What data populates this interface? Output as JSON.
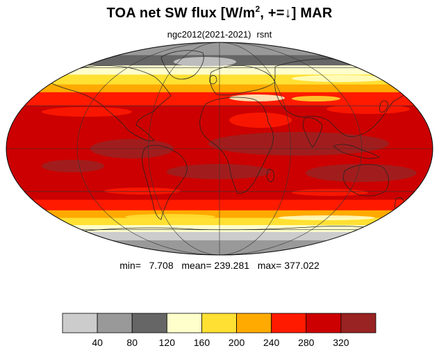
{
  "title": {
    "prefix": "TOA net SW flux [W/m",
    "superscript": "2",
    "suffix": ", +=↓]  MAR"
  },
  "subtitle": {
    "case": "ngc2012(2021-2021)",
    "variable": "rsnt"
  },
  "stats": {
    "min_label": "min=",
    "min": "7.708",
    "mean_label": "mean=",
    "mean": "239.281",
    "max_label": "max=",
    "max": "377.022"
  },
  "colorbar": {
    "colors": [
      "#cccccc",
      "#999999",
      "#666666",
      "#ffffcc",
      "#ffe033",
      "#ffaa00",
      "#ff1a00",
      "#cc0000",
      "#992222"
    ],
    "tick_labels": [
      "40",
      "80",
      "120",
      "160",
      "200",
      "240",
      "280",
      "320"
    ]
  },
  "map": {
    "projection": "mollweide",
    "grid": true,
    "bands": [
      {
        "lat_from": 90,
        "lat_to": 72,
        "color": "#999999"
      },
      {
        "lat_from": 72,
        "lat_to": 62,
        "color": "#666666"
      },
      {
        "lat_from": 62,
        "lat_to": 54,
        "color": "#ffffcc"
      },
      {
        "lat_from": 54,
        "lat_to": 46,
        "color": "#ffe033"
      },
      {
        "lat_from": 46,
        "lat_to": 40,
        "color": "#ffaa00"
      },
      {
        "lat_from": 40,
        "lat_to": 30,
        "color": "#ff1a00"
      },
      {
        "lat_from": 30,
        "lat_to": -20,
        "color": "#cc0000"
      },
      {
        "lat_from": -20,
        "lat_to": -36,
        "color": "#cc0000"
      },
      {
        "lat_from": -36,
        "lat_to": -44,
        "color": "#ff1a00"
      },
      {
        "lat_from": -44,
        "lat_to": -50,
        "color": "#ffaa00"
      },
      {
        "lat_from": -50,
        "lat_to": -56,
        "color": "#ffe033"
      },
      {
        "lat_from": -56,
        "lat_to": -62,
        "color": "#ffffcc"
      },
      {
        "lat_from": -62,
        "lat_to": -70,
        "color": "#cccccc"
      },
      {
        "lat_from": -70,
        "lat_to": -90,
        "color": "#999999"
      }
    ]
  }
}
